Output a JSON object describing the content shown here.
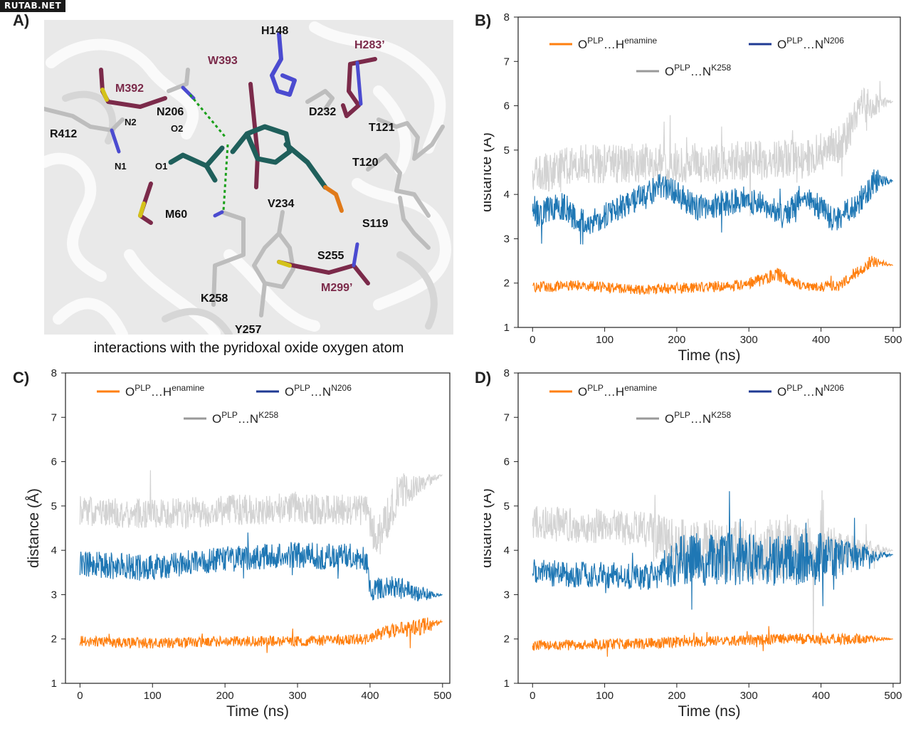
{
  "watermark": "RUTAB.NET",
  "panel_a": {
    "letter": "A)",
    "caption": "interactions with the pyridoxal oxide oxygen atom",
    "residue_labels": [
      {
        "text": "H148",
        "color": "#111111"
      },
      {
        "text": "W393",
        "color": "#7b2a4a"
      },
      {
        "text": "H283’",
        "color": "#7b2a4a"
      },
      {
        "text": "M392",
        "color": "#7b2a4a"
      },
      {
        "text": "N206",
        "color": "#111111"
      },
      {
        "text": "D232",
        "color": "#111111"
      },
      {
        "text": "N2",
        "color": "#111111"
      },
      {
        "text": "R412",
        "color": "#111111"
      },
      {
        "text": "O2",
        "color": "#111111"
      },
      {
        "text": "T121",
        "color": "#111111"
      },
      {
        "text": "O1",
        "color": "#111111"
      },
      {
        "text": "N1",
        "color": "#111111"
      },
      {
        "text": "T120",
        "color": "#111111"
      },
      {
        "text": "M60",
        "color": "#111111"
      },
      {
        "text": "V234",
        "color": "#111111"
      },
      {
        "text": "S119",
        "color": "#111111"
      },
      {
        "text": "S255",
        "color": "#111111"
      },
      {
        "text": "M299’",
        "color": "#7b2a4a"
      },
      {
        "text": "K258",
        "color": "#111111"
      },
      {
        "text": "Y257",
        "color": "#111111"
      }
    ]
  },
  "colors": {
    "henamine": "#ff7f0e",
    "n206": "#1f77b4",
    "n206_legend": "#1f3a93",
    "k258": "#d3d3d3",
    "k258_legend": "#999999"
  },
  "chart_data": [
    {
      "panel": "B)",
      "type": "line",
      "xlabel": "Time (ns)",
      "ylabel": "distance (Å)",
      "xlim": [
        -20,
        510
      ],
      "ylim": [
        1,
        8
      ],
      "xticks": [
        0,
        100,
        200,
        300,
        400,
        500
      ],
      "yticks": [
        1,
        2,
        3,
        4,
        5,
        6,
        7,
        8
      ],
      "legend": [
        {
          "base": "O",
          "sup1": "PLP",
          "mid": "…H",
          "sup2": "enamine"
        },
        {
          "base": "O",
          "sup1": "PLP",
          "mid": "…N",
          "sup2": "N206"
        },
        {
          "base": "O",
          "sup1": "PLP",
          "mid": "…N",
          "sup2": "K258"
        }
      ],
      "series": [
        {
          "key": "k258",
          "segments": [
            [
              0,
              4.4,
              0.45
            ],
            [
              60,
              4.7,
              0.45
            ],
            [
              180,
              4.7,
              0.45
            ],
            [
              380,
              4.8,
              0.45
            ],
            [
              430,
              5.2,
              0.45
            ],
            [
              460,
              6.0,
              0.45
            ],
            [
              500,
              6.1,
              0
            ]
          ]
        },
        {
          "key": "n206",
          "segments": [
            [
              0,
              3.5,
              0.3
            ],
            [
              35,
              3.8,
              0.35
            ],
            [
              75,
              3.3,
              0.3
            ],
            [
              110,
              3.6,
              0.3
            ],
            [
              180,
              4.2,
              0.3
            ],
            [
              230,
              3.7,
              0.3
            ],
            [
              300,
              3.9,
              0.3
            ],
            [
              350,
              3.5,
              0.3
            ],
            [
              375,
              4.0,
              0.3
            ],
            [
              420,
              3.4,
              0.3
            ],
            [
              450,
              3.8,
              0.3
            ],
            [
              475,
              4.3,
              0.3
            ],
            [
              500,
              4.3,
              0
            ]
          ]
        },
        {
          "key": "henamine",
          "segments": [
            [
              0,
              1.9,
              0.12
            ],
            [
              60,
              1.95,
              0.12
            ],
            [
              150,
              1.85,
              0.12
            ],
            [
              290,
              1.95,
              0.12
            ],
            [
              340,
              2.2,
              0.15
            ],
            [
              380,
              1.9,
              0.12
            ],
            [
              425,
              1.95,
              0.12
            ],
            [
              470,
              2.5,
              0.15
            ],
            [
              500,
              2.4,
              0
            ]
          ]
        }
      ]
    },
    {
      "panel": "C)",
      "type": "line",
      "xlabel": "Time (ns)",
      "ylabel": "distance (Å)",
      "xlim": [
        -20,
        510
      ],
      "ylim": [
        1,
        8
      ],
      "xticks": [
        0,
        100,
        200,
        300,
        400,
        500
      ],
      "yticks": [
        1,
        2,
        3,
        4,
        5,
        6,
        7,
        8
      ],
      "legend": [
        {
          "base": "O",
          "sup1": "PLP",
          "mid": "…H",
          "sup2": "enamine"
        },
        {
          "base": "O",
          "sup1": "PLP",
          "mid": "…N",
          "sup2": "N206"
        },
        {
          "base": "O",
          "sup1": "PLP",
          "mid": "…N",
          "sup2": "K258"
        }
      ],
      "series": [
        {
          "key": "k258",
          "segments": [
            [
              0,
              4.9,
              0.35
            ],
            [
              100,
              4.8,
              0.35
            ],
            [
              200,
              4.9,
              0.35
            ],
            [
              300,
              4.95,
              0.35
            ],
            [
              395,
              4.9,
              0.35
            ],
            [
              410,
              4.2,
              0.5
            ],
            [
              440,
              5.3,
              0.45
            ],
            [
              500,
              5.7,
              0
            ]
          ]
        },
        {
          "key": "n206",
          "segments": [
            [
              0,
              3.7,
              0.3
            ],
            [
              90,
              3.6,
              0.3
            ],
            [
              200,
              3.8,
              0.3
            ],
            [
              300,
              3.9,
              0.3
            ],
            [
              395,
              3.8,
              0.3
            ],
            [
              400,
              3.1,
              0.25
            ],
            [
              430,
              3.2,
              0.25
            ],
            [
              470,
              3.0,
              0.2
            ],
            [
              500,
              3.0,
              0
            ]
          ]
        },
        {
          "key": "henamine",
          "segments": [
            [
              0,
              1.95,
              0.12
            ],
            [
              100,
              1.9,
              0.12
            ],
            [
              200,
              1.95,
              0.12
            ],
            [
              300,
              1.95,
              0.12
            ],
            [
              395,
              2.0,
              0.12
            ],
            [
              420,
              2.15,
              0.15
            ],
            [
              480,
              2.3,
              0.2
            ],
            [
              500,
              2.4,
              0
            ]
          ]
        }
      ]
    },
    {
      "panel": "D)",
      "type": "line",
      "xlabel": "Time (ns)",
      "ylabel": "distance (Å)",
      "xlim": [
        -20,
        510
      ],
      "ylim": [
        1,
        8
      ],
      "xticks": [
        0,
        100,
        200,
        300,
        400,
        500
      ],
      "yticks": [
        1,
        2,
        3,
        4,
        5,
        6,
        7,
        8
      ],
      "legend": [
        {
          "base": "O",
          "sup1": "PLP",
          "mid": "…H",
          "sup2": "enamine"
        },
        {
          "base": "O",
          "sup1": "PLP",
          "mid": "…N",
          "sup2": "N206"
        },
        {
          "base": "O",
          "sup1": "PLP",
          "mid": "…N",
          "sup2": "K258"
        }
      ],
      "series": [
        {
          "key": "k258",
          "segments": [
            [
              0,
              4.6,
              0.4
            ],
            [
              150,
              4.5,
              0.4
            ],
            [
              210,
              4.0,
              0.7
            ],
            [
              300,
              4.0,
              0.7
            ],
            [
              400,
              4.0,
              0.7
            ],
            [
              500,
              4.0,
              0
            ]
          ]
        },
        {
          "key": "n206",
          "segments": [
            [
              0,
              3.5,
              0.3
            ],
            [
              160,
              3.4,
              0.3
            ],
            [
              210,
              3.8,
              0.6
            ],
            [
              300,
              3.8,
              0.6
            ],
            [
              400,
              3.8,
              0.6
            ],
            [
              500,
              3.9,
              0
            ]
          ]
        },
        {
          "key": "henamine",
          "segments": [
            [
              0,
              1.85,
              0.12
            ],
            [
              160,
              1.9,
              0.12
            ],
            [
              250,
              1.95,
              0.12
            ],
            [
              350,
              2.0,
              0.12
            ],
            [
              450,
              2.0,
              0.12
            ],
            [
              500,
              2.0,
              0
            ]
          ]
        }
      ]
    }
  ]
}
